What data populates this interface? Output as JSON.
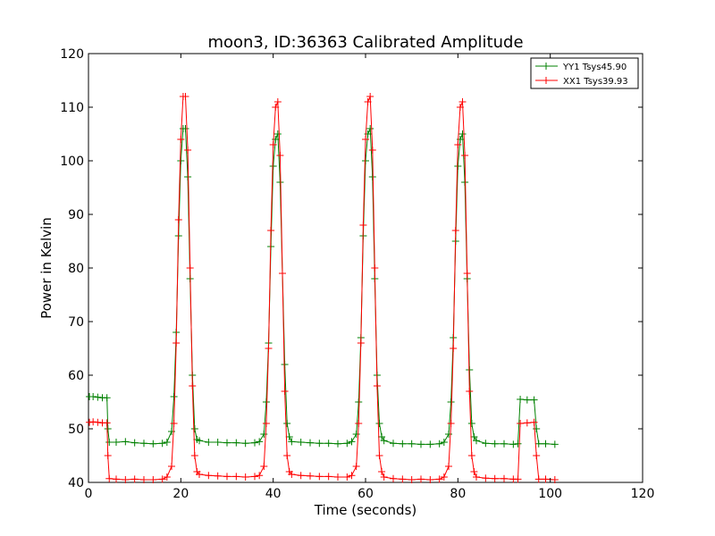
{
  "chart_data": {
    "type": "line",
    "title": "moon3, ID:36363 Calibrated Amplitude",
    "xlabel": "Time (seconds)",
    "ylabel": "Power in Kelvin",
    "xlim": [
      0,
      120
    ],
    "ylim": [
      40,
      120
    ],
    "xticks": [
      0,
      20,
      40,
      60,
      80,
      100,
      120
    ],
    "yticks": [
      40,
      50,
      60,
      70,
      80,
      90,
      100,
      110,
      120
    ],
    "grid": false,
    "legend_position": "top-right",
    "marker": "plus",
    "series": [
      {
        "name": "YY1 Tsys45.90",
        "color": "#008000",
        "x": [
          0.2,
          1,
          2,
          3,
          4,
          4.2,
          4.5,
          6,
          8,
          10,
          12,
          14,
          16,
          17,
          18,
          18.5,
          19,
          19.5,
          20,
          20.5,
          21,
          21.5,
          22,
          22.5,
          23,
          23.5,
          24,
          26,
          28,
          30,
          32,
          34,
          36,
          37,
          38,
          38.5,
          39,
          39.5,
          40,
          40.5,
          41,
          41.5,
          42,
          42.5,
          43,
          43.5,
          44,
          46,
          48,
          50,
          52,
          54,
          56,
          57,
          58,
          58.5,
          59,
          59.5,
          60,
          60.5,
          61,
          61.5,
          62,
          62.5,
          63,
          63.5,
          64,
          66,
          68,
          70,
          72,
          74,
          76,
          77,
          78,
          78.5,
          79,
          79.5,
          80,
          80.5,
          81,
          81.5,
          82,
          82.5,
          83,
          83.5,
          84,
          86,
          88,
          90,
          92,
          93,
          93.5,
          95,
          96.5,
          97,
          97.5,
          99,
          101
        ],
        "y": [
          56,
          56,
          55.9,
          55.8,
          55.8,
          50,
          47.5,
          47.5,
          47.6,
          47.4,
          47.3,
          47.2,
          47.3,
          47.5,
          49.5,
          56,
          68,
          86,
          100,
          106,
          106,
          97,
          78,
          60,
          50,
          48,
          47.8,
          47.5,
          47.5,
          47.4,
          47.4,
          47.3,
          47.4,
          47.6,
          49,
          55,
          66,
          84,
          99,
          104,
          105,
          96,
          79,
          62,
          51,
          48.5,
          47.6,
          47.5,
          47.4,
          47.3,
          47.3,
          47.2,
          47.3,
          47.6,
          49,
          55,
          67,
          86,
          100,
          105,
          106,
          97,
          78,
          60,
          51,
          48.5,
          47.8,
          47.3,
          47.2,
          47.2,
          47.1,
          47.1,
          47.2,
          47.5,
          49,
          55,
          67,
          85,
          99,
          104,
          105,
          96,
          78,
          61,
          51,
          48.5,
          47.8,
          47.3,
          47.2,
          47.2,
          47.1,
          47.2,
          55.5,
          55.4,
          55.4,
          50,
          47.2,
          47.2,
          47.1
        ]
      },
      {
        "name": "XX1 Tsys39.93",
        "color": "#ff0000",
        "x": [
          0.2,
          1,
          2,
          3,
          4,
          4.2,
          4.5,
          6,
          8,
          10,
          12,
          14,
          16,
          17,
          18,
          18.5,
          19,
          19.5,
          20,
          20.5,
          21,
          21.5,
          22,
          22.5,
          23,
          23.5,
          24,
          26,
          28,
          30,
          32,
          34,
          36,
          37,
          38,
          38.5,
          39,
          39.5,
          40,
          40.5,
          41,
          41.5,
          42,
          42.5,
          43,
          43.5,
          44,
          46,
          48,
          50,
          52,
          54,
          56,
          57,
          58,
          58.5,
          59,
          59.5,
          60,
          60.5,
          61,
          61.5,
          62,
          62.5,
          63,
          63.5,
          64,
          66,
          68,
          70,
          72,
          74,
          76,
          77,
          78,
          78.5,
          79,
          79.5,
          80,
          80.5,
          81,
          81.5,
          82,
          82.5,
          83,
          83.5,
          84,
          86,
          88,
          90,
          92,
          93,
          93.5,
          95,
          96.5,
          97,
          97.5,
          99,
          101
        ],
        "y": [
          51.2,
          51.3,
          51.2,
          51.1,
          51.1,
          45,
          40.7,
          40.6,
          40.5,
          40.6,
          40.5,
          40.5,
          40.6,
          41,
          43,
          51,
          66,
          89,
          104,
          112,
          112,
          102,
          80,
          58,
          45,
          42,
          41.5,
          41.3,
          41.2,
          41.1,
          41.1,
          41,
          41.1,
          41.3,
          43,
          51,
          65,
          87,
          103,
          110,
          111,
          101,
          79,
          57,
          45,
          42,
          41.5,
          41.3,
          41.2,
          41.1,
          41.1,
          41,
          41,
          41.3,
          43,
          51,
          66,
          88,
          104,
          111,
          112,
          102,
          80,
          58,
          45,
          42,
          41,
          40.7,
          40.6,
          40.5,
          40.6,
          40.5,
          40.6,
          41,
          43,
          51,
          65,
          87,
          103,
          110,
          111,
          101,
          79,
          57,
          45,
          42,
          41,
          40.8,
          40.7,
          40.7,
          40.6,
          40.6,
          51,
          51.1,
          51.2,
          45,
          40.6,
          40.6,
          40.5
        ]
      }
    ]
  }
}
